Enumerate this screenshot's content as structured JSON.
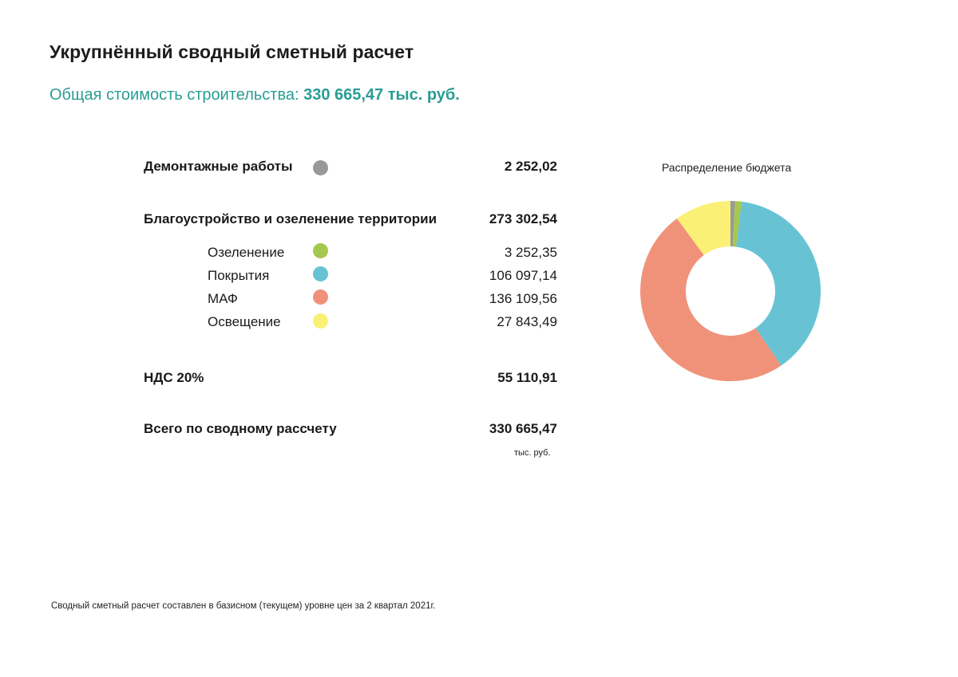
{
  "header": {
    "title": "Укрупнённый сводный сметный расчет",
    "subtitle_prefix": "Общая стоимость строительства: ",
    "subtitle_amount": "330 665,47 тыс. руб."
  },
  "table": {
    "demolition": {
      "label": "Демонтажные работы",
      "value": "2 252,02",
      "color": "#999999"
    },
    "landscaping": {
      "label": "Благоустройство и озеленение территории",
      "value": "273 302,54"
    },
    "sub_items": [
      {
        "label": "Озеленение",
        "value": "3 252,35",
        "color": "#a6c84f"
      },
      {
        "label": "Покрытия",
        "value": "106 097,14",
        "color": "#67c3d4"
      },
      {
        "label": "МАФ",
        "value": "136 109,56",
        "color": "#f0927a"
      },
      {
        "label": "Освещение",
        "value": "27 843,49",
        "color": "#fbf076"
      }
    ],
    "vat": {
      "label": "НДС 20%",
      "value": "55 110,91"
    },
    "total": {
      "label": "Всего по сводному рассчету",
      "value": "330 665,47"
    },
    "units": "тыс. руб."
  },
  "chart_data": {
    "type": "pie",
    "title": "Распределение бюджета",
    "donut": true,
    "categories": [
      "Демонтажные работы",
      "Озеленение",
      "Покрытия",
      "МАФ",
      "Освещение"
    ],
    "values": [
      2252.02,
      3252.35,
      106097.14,
      136109.56,
      27843.49
    ],
    "colors": [
      "#999999",
      "#a6c84f",
      "#67c3d4",
      "#f0927a",
      "#fbf076"
    ]
  },
  "footnote": "Сводный сметный расчет составлен в базисном (текущем) уровне цен за 2 квартал 2021г."
}
